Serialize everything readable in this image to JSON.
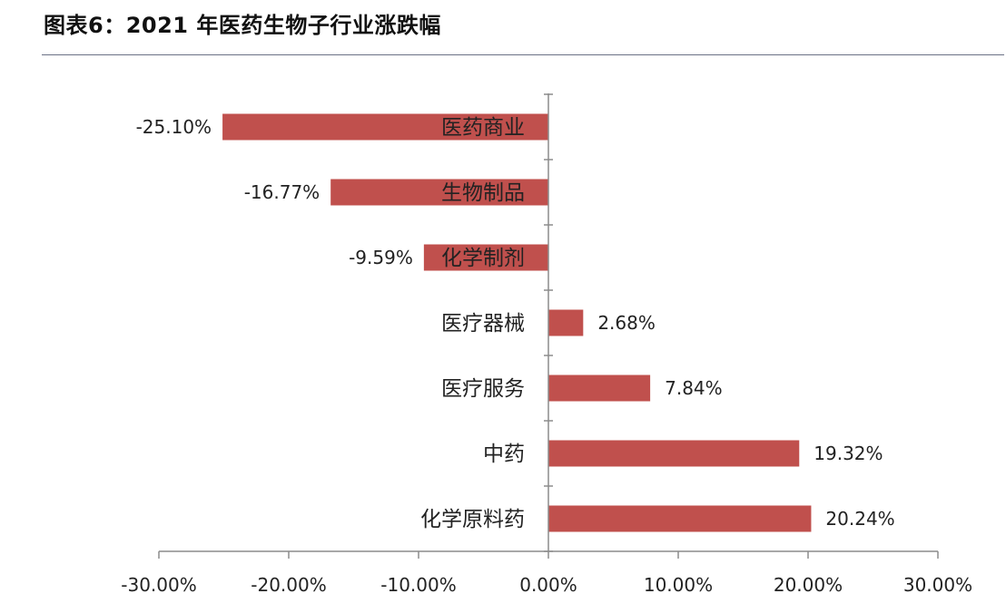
{
  "title": "图表6：2021 年医药生物子行业涨跌幅",
  "colors": {
    "bar": "#c0504d",
    "axis": "#8c8c8c",
    "rule": "#6b7185"
  },
  "chart_data": {
    "type": "bar",
    "orientation": "horizontal",
    "categories": [
      "医药商业",
      "生物制品",
      "化学制剂",
      "医疗器械",
      "医疗服务",
      "中药",
      "化学原料药"
    ],
    "values": [
      -25.1,
      -16.77,
      -9.59,
      2.68,
      7.84,
      19.32,
      20.24
    ],
    "value_labels": [
      "-25.10%",
      "-16.77%",
      "-9.59%",
      "2.68%",
      "7.84%",
      "19.32%",
      "20.24%"
    ],
    "xlim": [
      -30,
      30
    ],
    "x_ticks": [
      -30,
      -20,
      -10,
      0,
      10,
      20,
      30
    ],
    "x_tick_labels": [
      "-30.00%",
      "-20.00%",
      "-10.00%",
      "0.00%",
      "10.00%",
      "20.00%",
      "30.00%"
    ],
    "grid": false,
    "legend": "none"
  }
}
